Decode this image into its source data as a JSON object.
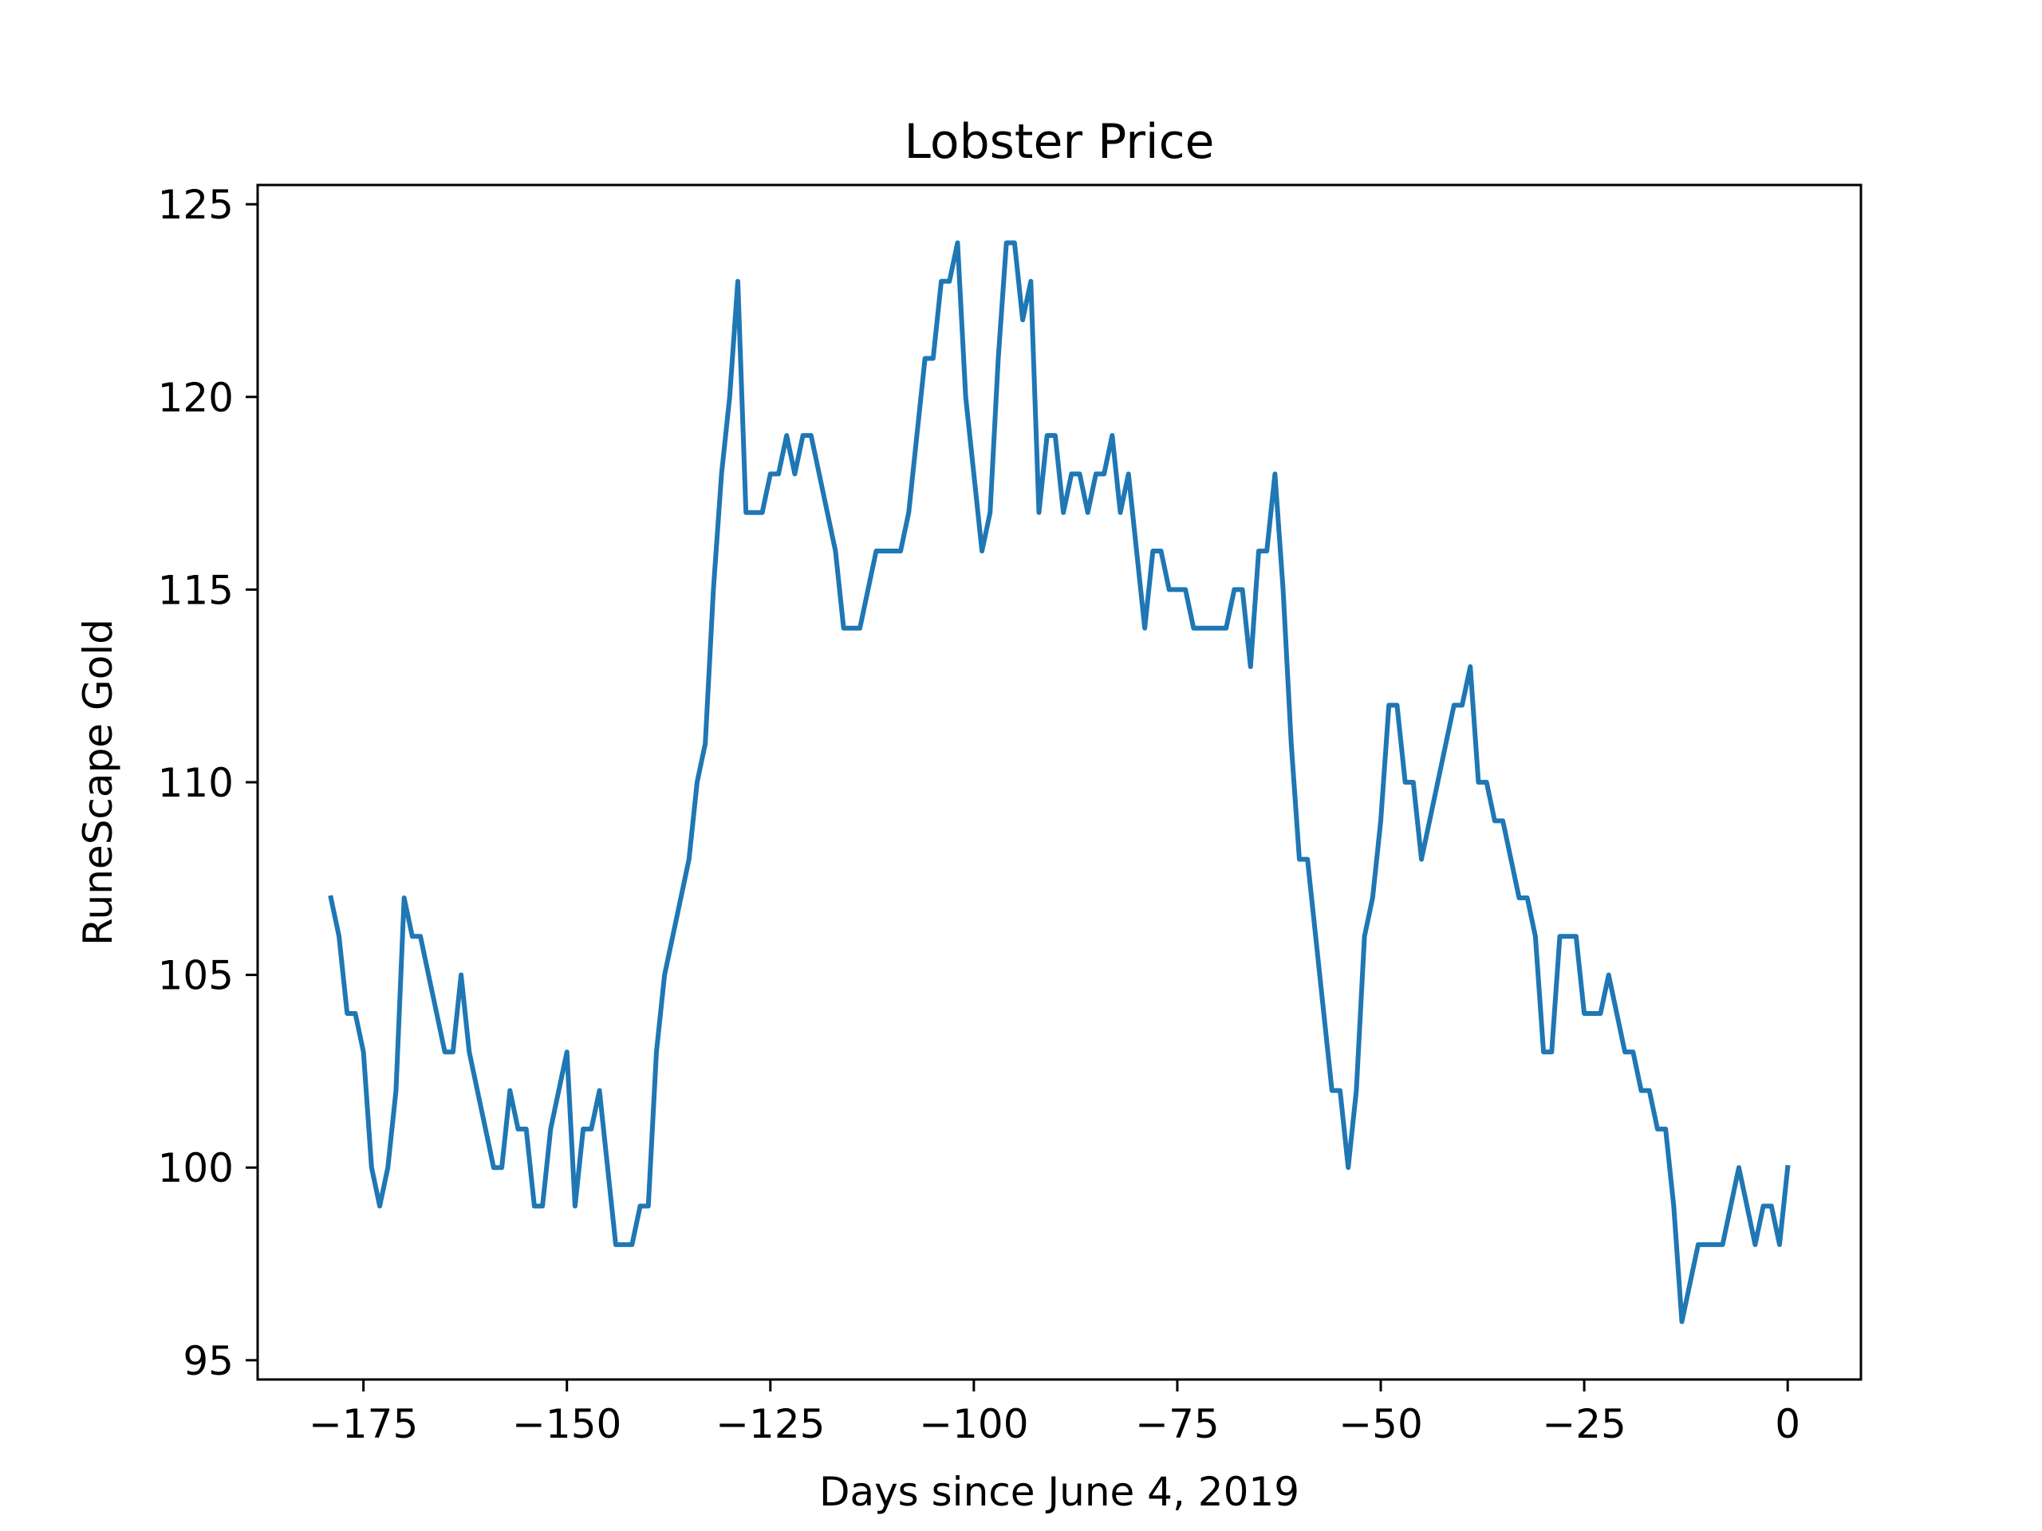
{
  "chart_data": {
    "type": "line",
    "title": "Lobster Price",
    "xlabel": "Days since June 4, 2019",
    "ylabel": "RuneScape Gold",
    "xlim": [
      -188,
      9
    ],
    "ylim": [
      94.5,
      125.5
    ],
    "xticks": [
      -175,
      -150,
      -125,
      -100,
      -75,
      -50,
      -25,
      0
    ],
    "xtick_labels": [
      "−175",
      "−150",
      "−125",
      "−100",
      "−75",
      "−50",
      "−25",
      "0"
    ],
    "yticks": [
      95,
      100,
      105,
      110,
      115,
      120,
      125
    ],
    "ytick_labels": [
      "95",
      "100",
      "105",
      "110",
      "115",
      "120",
      "125"
    ],
    "grid": false,
    "line_color": "#1f77b4",
    "series": [
      {
        "x": [
          -179,
          -178,
          -177,
          -176,
          -175,
          -174,
          -173,
          -172,
          -171,
          -170,
          -169,
          -168,
          -167,
          -166,
          -165,
          -164,
          -163,
          -162,
          -161,
          -160,
          -159,
          -158,
          -157,
          -156,
          -155,
          -154,
          -153,
          -152,
          -151,
          -150,
          -149,
          -148,
          -147,
          -146,
          -145,
          -144,
          -143,
          -142,
          -141,
          -140,
          -139,
          -138,
          -137,
          -136,
          -135,
          -134,
          -133,
          -132,
          -131,
          -130,
          -129,
          -128,
          -127,
          -126,
          -125,
          -124,
          -123,
          -122,
          -121,
          -120,
          -119,
          -118,
          -117,
          -116,
          -115,
          -114,
          -113,
          -112,
          -111,
          -110,
          -109,
          -108,
          -107,
          -106,
          -105,
          -104,
          -103,
          -102,
          -101,
          -100,
          -99,
          -98,
          -97,
          -96,
          -95,
          -94,
          -93,
          -92,
          -91,
          -90,
          -89,
          -88,
          -87,
          -86,
          -85,
          -84,
          -83,
          -82,
          -81,
          -80,
          -79,
          -78,
          -77,
          -76,
          -75,
          -74,
          -73,
          -72,
          -71,
          -70,
          -69,
          -68,
          -67,
          -66,
          -65,
          -64,
          -63,
          -62,
          -61,
          -60,
          -59,
          -58,
          -57,
          -56,
          -55,
          -54,
          -53,
          -52,
          -51,
          -50,
          -49,
          -48,
          -47,
          -46,
          -45,
          -44,
          -43,
          -42,
          -41,
          -40,
          -39,
          -38,
          -37,
          -36,
          -35,
          -34,
          -33,
          -32,
          -31,
          -30,
          -29,
          -28,
          -27,
          -26,
          -25,
          -24,
          -23,
          -22,
          -21,
          -20,
          -19,
          -18,
          -17,
          -16,
          -15,
          -14,
          -13,
          -12,
          -11,
          -10,
          -9,
          -8,
          -7,
          -6,
          -5,
          -4,
          -3,
          -2,
          -1,
          0
        ],
        "y": [
          107,
          106,
          104,
          104,
          103,
          100,
          99,
          100,
          102,
          107,
          106,
          106,
          105,
          104,
          103,
          103,
          105,
          103,
          102,
          101,
          100,
          100,
          102,
          101,
          101,
          99,
          99,
          101,
          102,
          103,
          99,
          101,
          101,
          102,
          100,
          98,
          98,
          98,
          99,
          99,
          103,
          105,
          106,
          107,
          108,
          110,
          111,
          115,
          118,
          120,
          123,
          117,
          117,
          117,
          118,
          118,
          119,
          118,
          119,
          119,
          118,
          117,
          116,
          114,
          114,
          114,
          115,
          116,
          116,
          116,
          116,
          117,
          119,
          121,
          121,
          123,
          123,
          124,
          120,
          118,
          116,
          117,
          121,
          124,
          124,
          122,
          123,
          117,
          119,
          119,
          117,
          118,
          118,
          117,
          118,
          118,
          119,
          117,
          118,
          116,
          114,
          116,
          116,
          115,
          115,
          115,
          114,
          114,
          114,
          114,
          114,
          115,
          115,
          113,
          116,
          116,
          118,
          115,
          111,
          108,
          108,
          106,
          104,
          102,
          102,
          100,
          102,
          106,
          107,
          109,
          112,
          112,
          110,
          110,
          108,
          109,
          110,
          111,
          112,
          112,
          113,
          110,
          110,
          109,
          109,
          108,
          107,
          107,
          106,
          103,
          103,
          106,
          106,
          106,
          104,
          104,
          104,
          105,
          104,
          103,
          103,
          102,
          102,
          101,
          101,
          99,
          96,
          97,
          98,
          98,
          98,
          98,
          99,
          100,
          99,
          98,
          99,
          99,
          98,
          100
        ]
      }
    ]
  }
}
